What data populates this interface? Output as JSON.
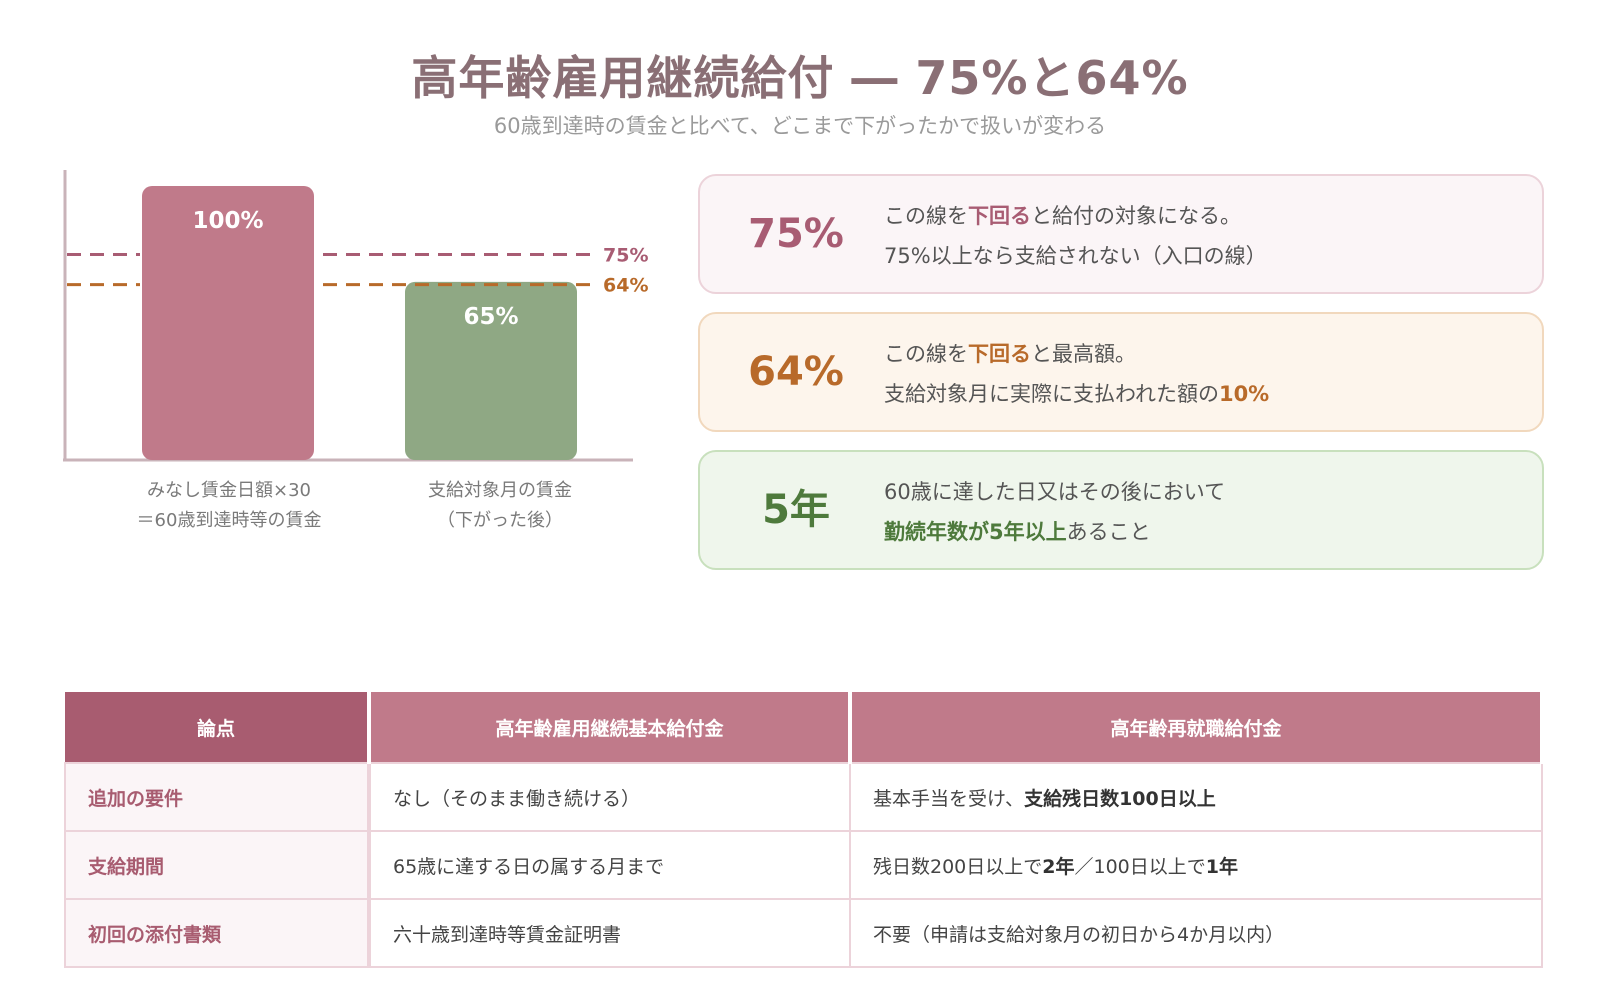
{
  "header": {
    "title": "高年齢雇用継続給付 ― 75%と64%",
    "subtitle": "60歳到達時の賃金と比べて、どこまで下がったかで扱いが変わる"
  },
  "chart_data": {
    "type": "bar",
    "categories": [
      "みなし賃金日額×30\n＝60歳到達時等の賃金",
      "支給対象月の賃金\n（下がった後）"
    ],
    "category_lines": [
      [
        "みなし賃金日額×30",
        "＝60歳到達時等の賃金"
      ],
      [
        "支給対象月の賃金",
        "（下がった後）"
      ]
    ],
    "values": [
      100,
      65
    ],
    "data_labels": [
      "100%",
      "65%"
    ],
    "colors": [
      "#c07a8a",
      "#8fa884"
    ],
    "ylim": [
      0,
      100
    ],
    "reference_lines": [
      {
        "value": 75,
        "label": "75%",
        "color": "#a85c73"
      },
      {
        "value": 64,
        "label": "64%",
        "color": "#b86a2a"
      }
    ]
  },
  "cards": [
    {
      "big": "75%",
      "line1_pre": "この線を",
      "line1_em": "下回る",
      "line1_post": "と給付の対象になる。",
      "line2_pre": "75%以上なら支給されない（入口の線）",
      "line2_em": "",
      "line2_post": ""
    },
    {
      "big": "64%",
      "line1_pre": "この線を",
      "line1_em": "下回る",
      "line1_post": "と最高額。",
      "line2_pre": "支給対象月に実際に支払われた額の",
      "line2_em": "10%",
      "line2_post": ""
    },
    {
      "big": "5年",
      "line1_pre": "60歳に達した日又はその後において",
      "line1_em": "",
      "line1_post": "",
      "line2_pre": "",
      "line2_em": "勤続年数が5年以上",
      "line2_post": "あること"
    }
  ],
  "table": {
    "headers": [
      "論点",
      "高年齢雇用継続基本給付金",
      "高年齢再就職給付金"
    ],
    "rows": [
      {
        "key": "追加の要件",
        "a": "なし（そのまま働き続ける）",
        "b_pre": "基本手当を受け、",
        "b_em": "支給残日数100日以上",
        "b_mid": "",
        "b_em2": "",
        "b_post": ""
      },
      {
        "key": "支給期間",
        "a": "65歳に達する日の属する月まで",
        "b_pre": "残日数200日以上で",
        "b_em": "2年",
        "b_mid": "／100日以上で",
        "b_em2": "1年",
        "b_post": ""
      },
      {
        "key": "初回の添付書類",
        "a": "六十歳到達時等賃金証明書",
        "b_pre": "不要（申請は支給対象月の初日から4か月以内）",
        "b_em": "",
        "b_mid": "",
        "b_em2": "",
        "b_post": ""
      }
    ]
  }
}
